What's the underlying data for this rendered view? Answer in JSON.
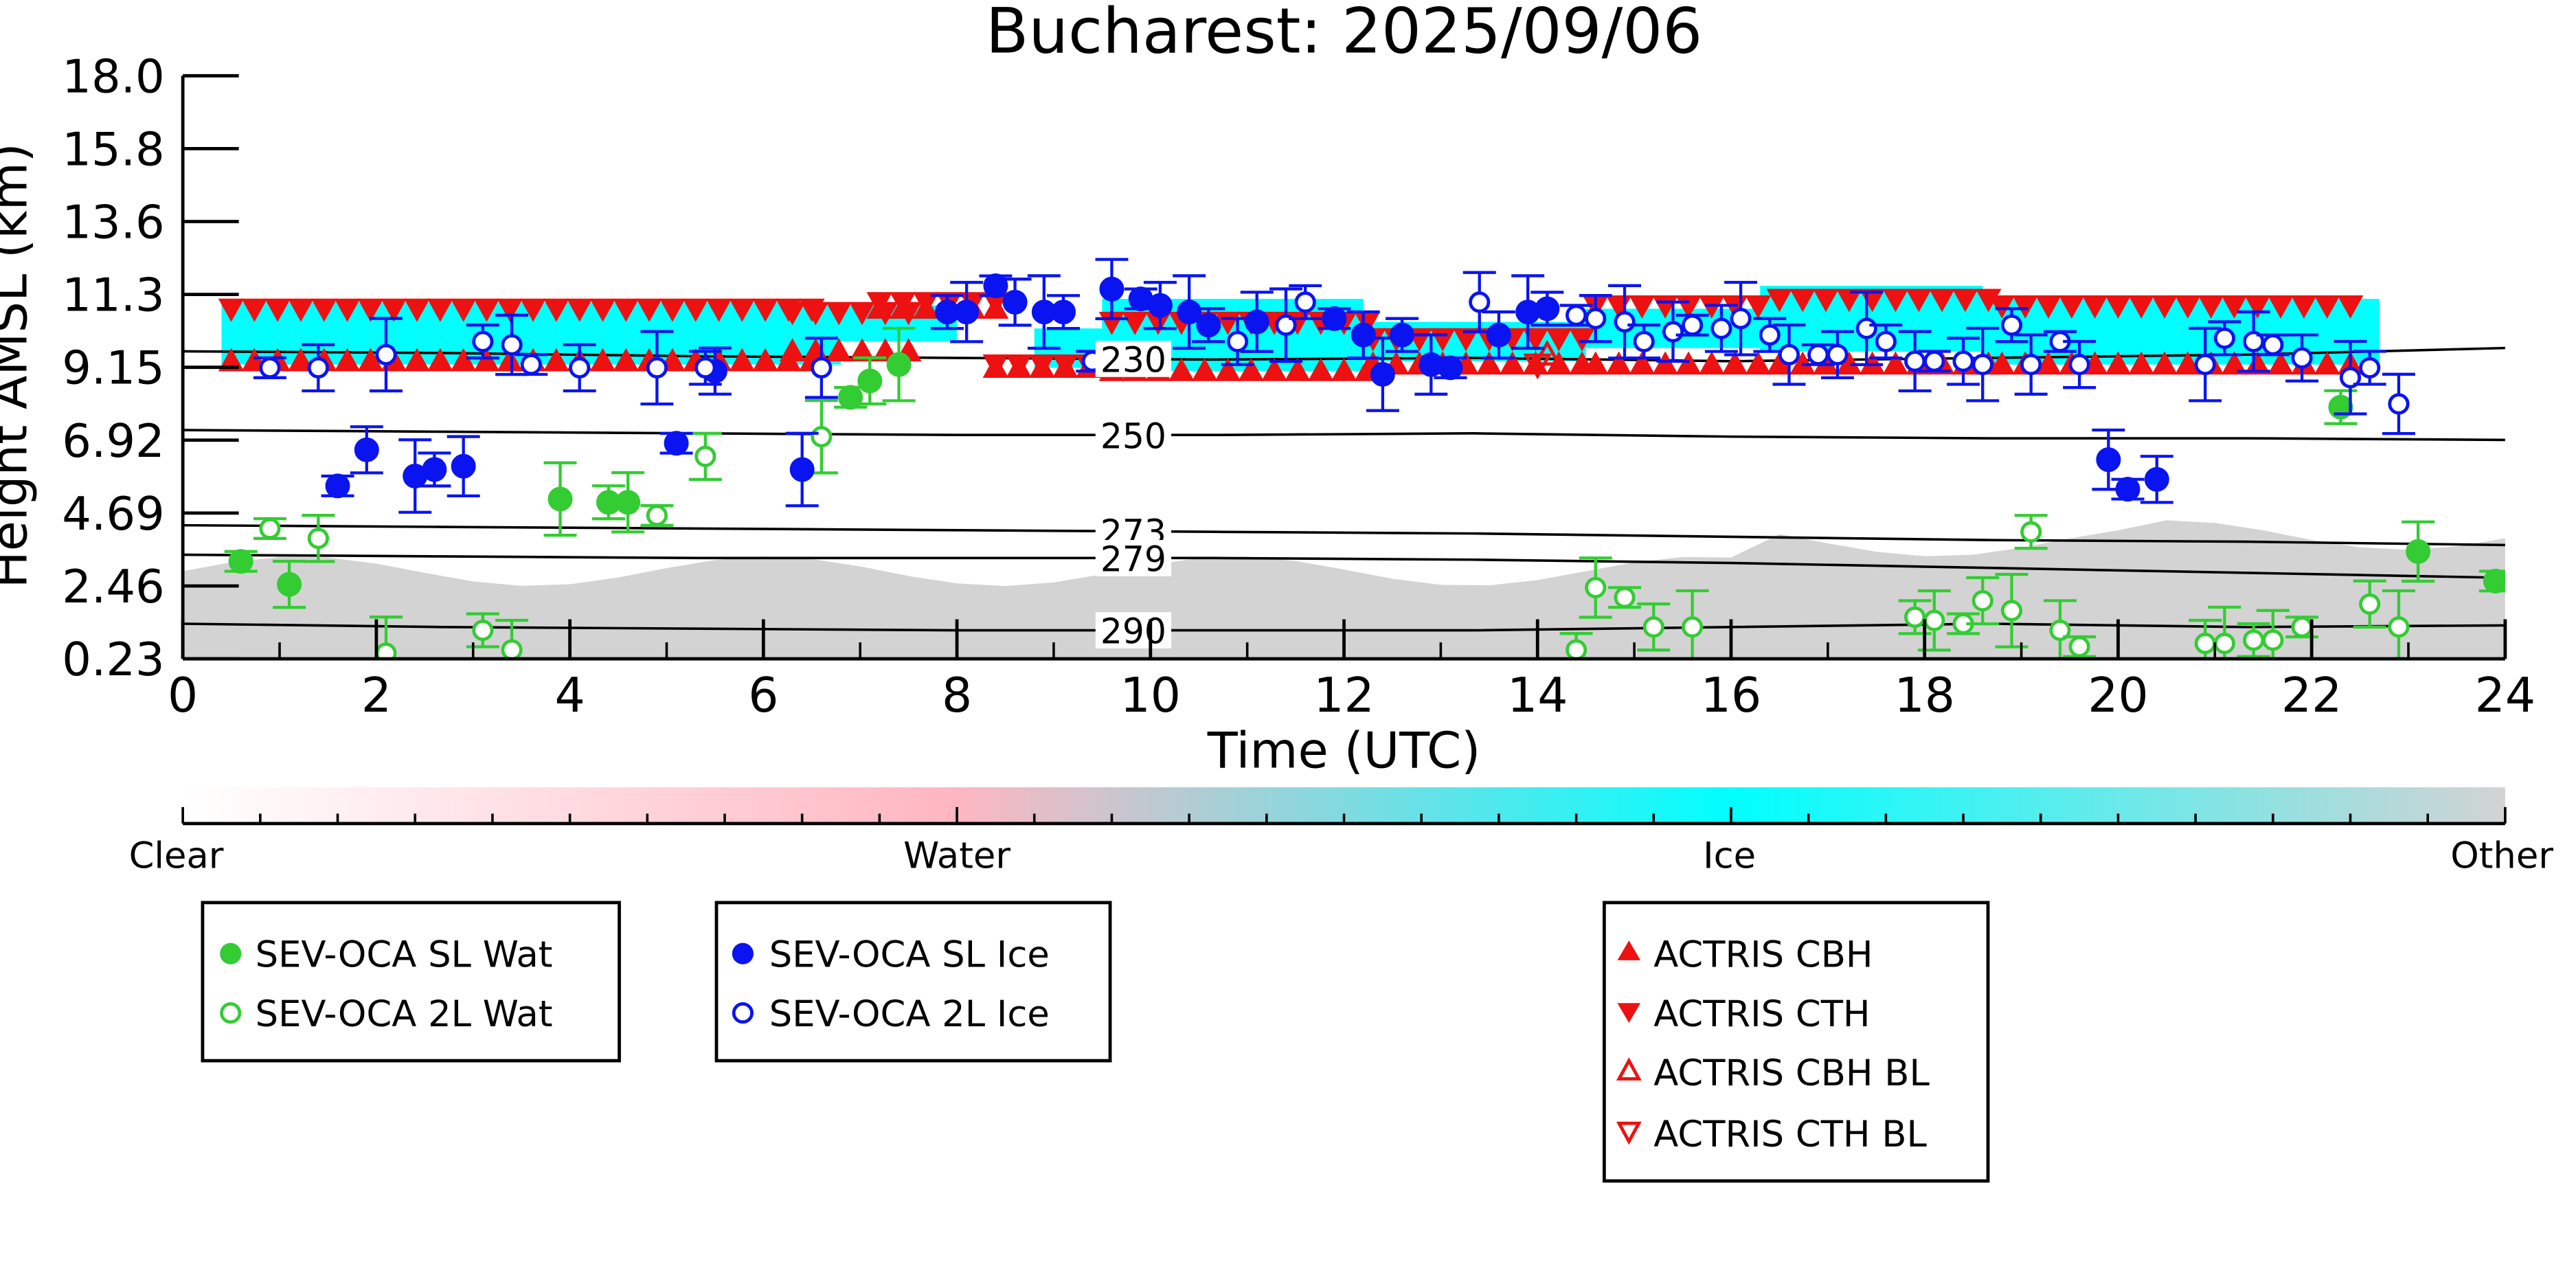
{
  "chart_data": {
    "type": "scatter",
    "title": "Bucharest: 2025/09/06",
    "xlabel": "Time (UTC)",
    "ylabel": "Height AMSL (km)",
    "xlim": [
      0,
      24
    ],
    "ylim": [
      0.23,
      18.0
    ],
    "x_ticks": [
      "0",
      "2",
      "4",
      "6",
      "8",
      "10",
      "12",
      "14",
      "16",
      "18",
      "20",
      "22",
      "24"
    ],
    "y_ticks": [
      "0.23",
      "2.46",
      "4.69",
      "6.92",
      "9.15",
      "11.3",
      "13.6",
      "15.8",
      "18.0"
    ],
    "isotherms": [
      {
        "label": "230",
        "y": [
          9.6,
          9.55,
          9.45,
          9.4,
          9.35,
          9.4,
          9.3,
          9.4,
          9.5,
          9.7
        ]
      },
      {
        "label": "250",
        "y": [
          7.2,
          7.15,
          7.1,
          7.05,
          7.05,
          7.1,
          7.0,
          6.95,
          6.95,
          6.9
        ]
      },
      {
        "label": "273",
        "y": [
          4.3,
          4.25,
          4.2,
          4.15,
          4.1,
          4.05,
          3.95,
          3.85,
          3.8,
          3.7
        ]
      },
      {
        "label": "279",
        "y": [
          3.4,
          3.35,
          3.3,
          3.3,
          3.3,
          3.25,
          3.15,
          3.0,
          2.85,
          2.7
        ]
      },
      {
        "label": "290",
        "y": [
          1.3,
          1.2,
          1.15,
          1.1,
          1.1,
          1.1,
          1.2,
          1.3,
          1.2,
          1.25
        ]
      }
    ],
    "colorbar": {
      "labels": [
        "Clear",
        "Water",
        "Ice",
        "Other"
      ],
      "colors": [
        "#ffffff",
        "#ffb6c1",
        "#00ffff",
        "#d3d3d3"
      ]
    },
    "legend_groups": [
      [
        "SEV-OCA SL Wat",
        "SEV-OCA 2L Wat"
      ],
      [
        "SEV-OCA SL Ice",
        "SEV-OCA 2L Ice"
      ],
      [
        "ACTRIS CBH",
        "ACTRIS CTH",
        "ACTRIS CBH BL",
        "ACTRIS CTH BL"
      ]
    ],
    "series": [
      {
        "name": "SEV-OCA SL Wat",
        "color": "#33cc33",
        "marker": "circle-filled",
        "x": [
          0.6,
          1.1,
          3.9,
          4.4,
          4.6,
          6.9,
          7.1,
          7.4,
          22.3,
          23.1,
          23.9
        ],
        "y": [
          3.2,
          2.5,
          5.1,
          5.0,
          5.0,
          8.2,
          8.7,
          9.2,
          7.9,
          3.5,
          2.6
        ]
      },
      {
        "name": "SEV-OCA 2L Wat",
        "color": "#33cc33",
        "marker": "circle-open",
        "x": [
          0.9,
          1.4,
          2.1,
          3.1,
          3.4,
          4.9,
          5.4,
          6.6,
          14.4,
          14.6,
          14.9,
          15.2,
          15.6,
          17.9,
          18.1,
          18.4,
          18.6,
          18.9,
          19.1,
          19.4,
          19.6,
          20.9,
          21.1,
          21.4,
          21.6,
          21.9,
          22.6,
          22.9
        ],
        "y": [
          4.2,
          3.9,
          0.4,
          1.1,
          0.5,
          4.6,
          6.4,
          7.0,
          0.5,
          2.4,
          2.1,
          1.2,
          1.2,
          1.5,
          1.4,
          1.3,
          2.0,
          1.7,
          4.1,
          1.1,
          0.6,
          0.7,
          0.7,
          0.8,
          0.8,
          1.2,
          1.9,
          1.2
        ]
      },
      {
        "name": "SEV-OCA SL Ice",
        "color": "#0a14f0",
        "marker": "circle-filled",
        "x": [
          1.6,
          1.9,
          2.4,
          2.6,
          2.9,
          5.1,
          5.5,
          6.4,
          7.9,
          8.1,
          8.4,
          8.6,
          8.9,
          9.1,
          9.6,
          9.9,
          10.1,
          10.4,
          10.6,
          11.1,
          11.9,
          12.2,
          12.4,
          12.6,
          12.9,
          13.1,
          13.6,
          13.9,
          14.1,
          19.9,
          20.1,
          20.4
        ],
        "y": [
          5.5,
          6.6,
          5.8,
          6.0,
          6.1,
          6.8,
          9.0,
          6.0,
          10.8,
          10.8,
          11.6,
          11.1,
          10.8,
          10.8,
          11.5,
          11.2,
          11.0,
          10.8,
          10.4,
          10.5,
          10.6,
          10.1,
          8.9,
          10.1,
          9.2,
          9.1,
          10.1,
          10.8,
          10.9,
          6.3,
          5.4,
          5.7
        ]
      },
      {
        "name": "SEV-OCA 2L Ice",
        "color": "#0a14f0",
        "marker": "circle-open",
        "x": [
          0.9,
          1.4,
          2.1,
          3.1,
          3.4,
          3.6,
          4.1,
          4.9,
          5.4,
          6.6,
          9.4,
          10.9,
          11.4,
          11.6,
          13.4,
          14.4,
          14.6,
          14.9,
          15.1,
          15.4,
          15.6,
          15.9,
          16.1,
          16.4,
          16.6,
          16.9,
          17.1,
          17.4,
          17.6,
          17.9,
          18.1,
          18.4,
          18.6,
          18.9,
          19.1,
          19.4,
          19.6,
          20.9,
          21.1,
          21.4,
          21.6,
          21.9,
          22.4,
          22.6,
          22.9
        ],
        "y": [
          9.1,
          9.1,
          9.5,
          9.9,
          9.8,
          9.2,
          9.1,
          9.1,
          9.1,
          9.1,
          9.3,
          9.9,
          10.4,
          11.1,
          11.1,
          10.7,
          10.6,
          10.5,
          9.9,
          10.2,
          10.4,
          10.3,
          10.6,
          10.1,
          9.5,
          9.5,
          9.5,
          10.3,
          9.9,
          9.3,
          9.3,
          9.3,
          9.2,
          10.4,
          9.2,
          9.9,
          9.2,
          9.2,
          10.0,
          9.9,
          9.8,
          9.4,
          8.8,
          9.1,
          8.0
        ]
      }
    ]
  }
}
